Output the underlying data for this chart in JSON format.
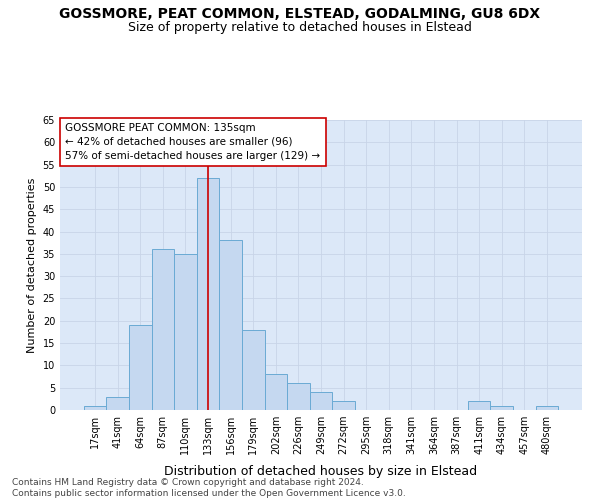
{
  "title1": "GOSSMORE, PEAT COMMON, ELSTEAD, GODALMING, GU8 6DX",
  "title2": "Size of property relative to detached houses in Elstead",
  "xlabel": "Distribution of detached houses by size in Elstead",
  "ylabel": "Number of detached properties",
  "bin_labels": [
    "17sqm",
    "41sqm",
    "64sqm",
    "87sqm",
    "110sqm",
    "133sqm",
    "156sqm",
    "179sqm",
    "202sqm",
    "226sqm",
    "249sqm",
    "272sqm",
    "295sqm",
    "318sqm",
    "341sqm",
    "364sqm",
    "387sqm",
    "411sqm",
    "434sqm",
    "457sqm",
    "480sqm"
  ],
  "bar_values": [
    1,
    3,
    19,
    36,
    35,
    52,
    38,
    18,
    8,
    6,
    4,
    2,
    0,
    0,
    0,
    0,
    0,
    2,
    1,
    0,
    1
  ],
  "bar_color": "#c5d8f0",
  "bar_edge_color": "#6aaad4",
  "vline_x": 5,
  "vline_color": "#cc0000",
  "annotation_text": "GOSSMORE PEAT COMMON: 135sqm\n← 42% of detached houses are smaller (96)\n57% of semi-detached houses are larger (129) →",
  "annotation_box_color": "#ffffff",
  "annotation_box_edge": "#cc0000",
  "ylim": [
    0,
    65
  ],
  "yticks": [
    0,
    5,
    10,
    15,
    20,
    25,
    30,
    35,
    40,
    45,
    50,
    55,
    60,
    65
  ],
  "grid_color": "#c8d4e8",
  "background_color": "#dce8f8",
  "footnote": "Contains HM Land Registry data © Crown copyright and database right 2024.\nContains public sector information licensed under the Open Government Licence v3.0.",
  "title1_fontsize": 10,
  "title2_fontsize": 9,
  "xlabel_fontsize": 9,
  "ylabel_fontsize": 8,
  "tick_fontsize": 7,
  "annot_fontsize": 7.5,
  "footnote_fontsize": 6.5
}
